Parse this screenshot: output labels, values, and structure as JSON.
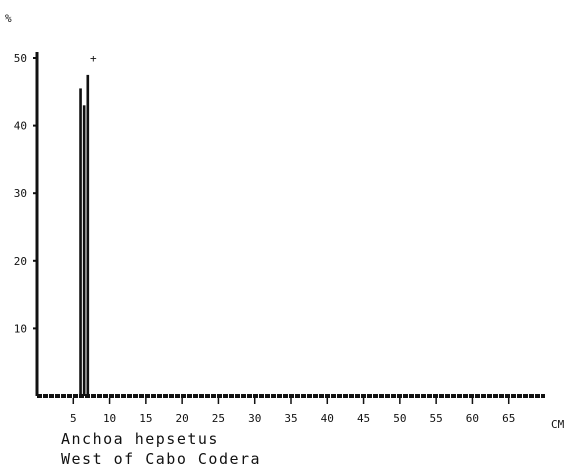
{
  "chart_data": {
    "type": "bar",
    "title": "Anchoa hepsetus",
    "subtitle": "West of Cabo Codera",
    "ylabel": "%",
    "xlabel": "CM",
    "ylim": [
      0,
      50
    ],
    "xlim": [
      0,
      70
    ],
    "y_ticks": [
      10,
      20,
      30,
      40,
      50
    ],
    "x_ticks": [
      5,
      10,
      15,
      20,
      25,
      30,
      35,
      40,
      45,
      50,
      55,
      60,
      65
    ],
    "bar_width": 0.5,
    "series": [
      {
        "x": [
          6.0,
          6.5,
          7.0
        ],
        "values": [
          45.5,
          43.0,
          47.5
        ]
      }
    ],
    "annotations": [
      "+"
    ],
    "grid": false
  }
}
